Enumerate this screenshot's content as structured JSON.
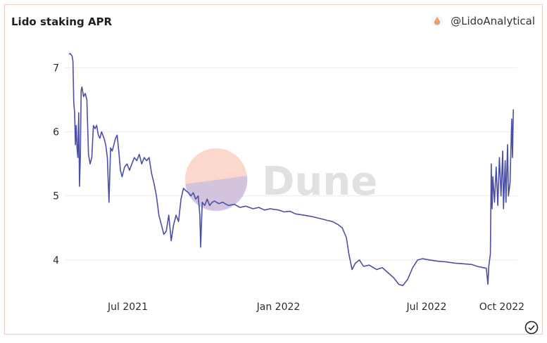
{
  "header": {
    "title": "Lido staking APR",
    "author": "@LidoAnalytical",
    "author_icon": "lido-drop-icon"
  },
  "watermark": {
    "text": "Dune",
    "icon": "dune-logo-icon"
  },
  "footer": {
    "verified_icon": "check-circle-icon"
  },
  "chart_data": {
    "type": "line",
    "title": "Lido staking APR",
    "xlabel": "",
    "ylabel": "",
    "x_ticks": [
      "Jul 2021",
      "Jan 2022",
      "Jul 2022",
      "Oct 2022"
    ],
    "y_ticks": [
      4,
      5,
      6,
      7
    ],
    "ylim": [
      3.45,
      7.4
    ],
    "xlim": [
      "2021-04-15",
      "2022-10-20"
    ],
    "grid": "horizontal",
    "color": "#4b4fa6",
    "series": [
      {
        "name": "",
        "points": [
          [
            "2021-04-20",
            7.22
          ],
          [
            "2021-04-22",
            7.22
          ],
          [
            "2021-04-24",
            7.18
          ],
          [
            "2021-04-25",
            7.1
          ],
          [
            "2021-04-26",
            6.45
          ],
          [
            "2021-04-27",
            6.3
          ],
          [
            "2021-04-28",
            5.8
          ],
          [
            "2021-04-29",
            6.1
          ],
          [
            "2021-04-30",
            5.75
          ],
          [
            "2021-05-01",
            5.6
          ],
          [
            "2021-05-02",
            6.3
          ],
          [
            "2021-05-03",
            5.15
          ],
          [
            "2021-05-04",
            5.6
          ],
          [
            "2021-05-05",
            6.65
          ],
          [
            "2021-05-06",
            6.7
          ],
          [
            "2021-05-08",
            6.55
          ],
          [
            "2021-05-10",
            6.6
          ],
          [
            "2021-05-12",
            6.5
          ],
          [
            "2021-05-14",
            5.65
          ],
          [
            "2021-05-16",
            5.5
          ],
          [
            "2021-05-18",
            5.6
          ],
          [
            "2021-05-20",
            6.1
          ],
          [
            "2021-05-22",
            6.05
          ],
          [
            "2021-05-24",
            6.1
          ],
          [
            "2021-05-26",
            5.95
          ],
          [
            "2021-05-28",
            5.9
          ],
          [
            "2021-05-30",
            6.0
          ],
          [
            "2021-06-02",
            5.9
          ],
          [
            "2021-06-04",
            5.8
          ],
          [
            "2021-06-06",
            5.6
          ],
          [
            "2021-06-08",
            4.9
          ],
          [
            "2021-06-10",
            5.75
          ],
          [
            "2021-06-12",
            5.7
          ],
          [
            "2021-06-14",
            5.8
          ],
          [
            "2021-06-16",
            5.9
          ],
          [
            "2021-06-18",
            5.95
          ],
          [
            "2021-06-20",
            5.7
          ],
          [
            "2021-06-22",
            5.4
          ],
          [
            "2021-06-24",
            5.3
          ],
          [
            "2021-06-27",
            5.45
          ],
          [
            "2021-06-30",
            5.5
          ],
          [
            "2021-07-03",
            5.4
          ],
          [
            "2021-07-06",
            5.5
          ],
          [
            "2021-07-09",
            5.6
          ],
          [
            "2021-07-12",
            5.55
          ],
          [
            "2021-07-15",
            5.65
          ],
          [
            "2021-07-18",
            5.5
          ],
          [
            "2021-07-21",
            5.6
          ],
          [
            "2021-07-24",
            5.55
          ],
          [
            "2021-07-27",
            5.6
          ],
          [
            "2021-07-30",
            5.35
          ],
          [
            "2021-08-02",
            5.2
          ],
          [
            "2021-08-05",
            5.0
          ],
          [
            "2021-08-08",
            4.7
          ],
          [
            "2021-08-11",
            4.55
          ],
          [
            "2021-08-14",
            4.4
          ],
          [
            "2021-08-17",
            4.45
          ],
          [
            "2021-08-20",
            4.7
          ],
          [
            "2021-08-23",
            4.3
          ],
          [
            "2021-08-26",
            4.55
          ],
          [
            "2021-08-29",
            4.7
          ],
          [
            "2021-09-01",
            4.6
          ],
          [
            "2021-09-04",
            4.95
          ],
          [
            "2021-09-07",
            5.12
          ],
          [
            "2021-09-10",
            5.08
          ],
          [
            "2021-09-13",
            5.05
          ],
          [
            "2021-09-16",
            5.0
          ],
          [
            "2021-09-19",
            5.05
          ],
          [
            "2021-09-22",
            4.95
          ],
          [
            "2021-09-25",
            5.0
          ],
          [
            "2021-09-27",
            4.7
          ],
          [
            "2021-09-28",
            4.2
          ],
          [
            "2021-09-30",
            4.9
          ],
          [
            "2021-10-03",
            4.85
          ],
          [
            "2021-10-06",
            4.95
          ],
          [
            "2021-10-09",
            4.85
          ],
          [
            "2021-10-12",
            4.9
          ],
          [
            "2021-10-15",
            4.92
          ],
          [
            "2021-10-20",
            4.88
          ],
          [
            "2021-10-25",
            4.9
          ],
          [
            "2021-11-01",
            4.85
          ],
          [
            "2021-11-08",
            4.87
          ],
          [
            "2021-11-15",
            4.82
          ],
          [
            "2021-11-22",
            4.84
          ],
          [
            "2021-12-01",
            4.8
          ],
          [
            "2021-12-08",
            4.82
          ],
          [
            "2021-12-15",
            4.78
          ],
          [
            "2021-12-22",
            4.8
          ],
          [
            "2022-01-01",
            4.78
          ],
          [
            "2022-01-08",
            4.75
          ],
          [
            "2022-01-15",
            4.76
          ],
          [
            "2022-01-22",
            4.72
          ],
          [
            "2022-02-01",
            4.7
          ],
          [
            "2022-02-10",
            4.68
          ],
          [
            "2022-02-20",
            4.65
          ],
          [
            "2022-03-01",
            4.62
          ],
          [
            "2022-03-08",
            4.6
          ],
          [
            "2022-03-15",
            4.55
          ],
          [
            "2022-03-20",
            4.5
          ],
          [
            "2022-03-25",
            4.35
          ],
          [
            "2022-03-28",
            4.1
          ],
          [
            "2022-04-01",
            3.85
          ],
          [
            "2022-04-05",
            3.95
          ],
          [
            "2022-04-10",
            4.0
          ],
          [
            "2022-04-15",
            3.9
          ],
          [
            "2022-04-22",
            3.92
          ],
          [
            "2022-05-01",
            3.85
          ],
          [
            "2022-05-08",
            3.88
          ],
          [
            "2022-05-15",
            3.8
          ],
          [
            "2022-05-22",
            3.72
          ],
          [
            "2022-05-28",
            3.62
          ],
          [
            "2022-06-02",
            3.6
          ],
          [
            "2022-06-08",
            3.7
          ],
          [
            "2022-06-14",
            3.88
          ],
          [
            "2022-06-20",
            4.0
          ],
          [
            "2022-06-26",
            4.02
          ],
          [
            "2022-07-05",
            4.0
          ],
          [
            "2022-07-15",
            3.98
          ],
          [
            "2022-07-25",
            3.97
          ],
          [
            "2022-08-05",
            3.95
          ],
          [
            "2022-08-15",
            3.94
          ],
          [
            "2022-08-25",
            3.93
          ],
          [
            "2022-09-01",
            3.9
          ],
          [
            "2022-09-08",
            3.88
          ],
          [
            "2022-09-12",
            3.87
          ],
          [
            "2022-09-14",
            3.62
          ],
          [
            "2022-09-15",
            3.9
          ],
          [
            "2022-09-17",
            4.1
          ],
          [
            "2022-09-18",
            5.5
          ],
          [
            "2022-09-19",
            4.8
          ],
          [
            "2022-09-20",
            5.3
          ],
          [
            "2022-09-22",
            4.9
          ],
          [
            "2022-09-24",
            5.45
          ],
          [
            "2022-09-26",
            4.85
          ],
          [
            "2022-09-28",
            5.6
          ],
          [
            "2022-09-30",
            5.0
          ],
          [
            "2022-10-02",
            5.7
          ],
          [
            "2022-10-03",
            4.8
          ],
          [
            "2022-10-05",
            5.55
          ],
          [
            "2022-10-06",
            4.9
          ],
          [
            "2022-10-08",
            5.8
          ],
          [
            "2022-10-09",
            5.0
          ],
          [
            "2022-10-11",
            5.2
          ],
          [
            "2022-10-12",
            5.7
          ],
          [
            "2022-10-13",
            6.2
          ],
          [
            "2022-10-14",
            5.6
          ],
          [
            "2022-10-15",
            6.35
          ]
        ]
      }
    ]
  }
}
